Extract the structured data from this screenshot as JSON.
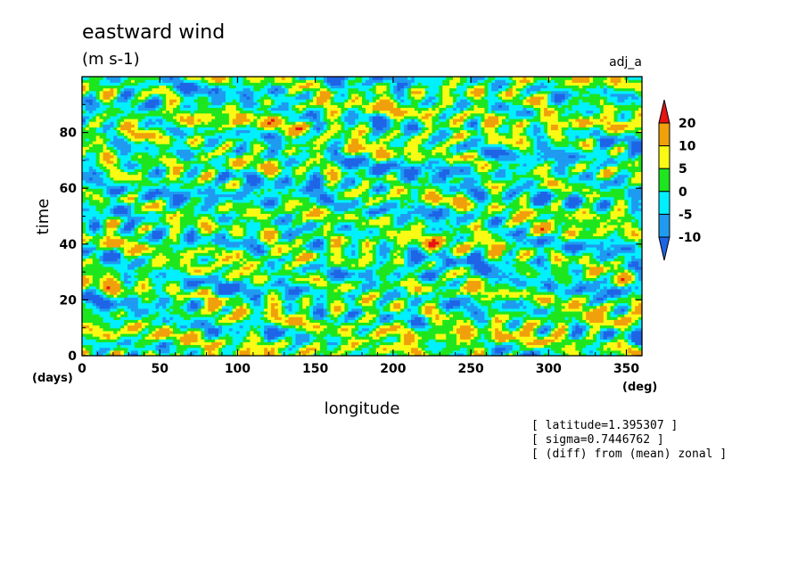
{
  "chart_data": {
    "type": "heatmap",
    "title": "eastward wind",
    "units": "(m s-1)",
    "tag": "adj_a",
    "xlabel": "longitude",
    "ylabel": "time",
    "x_unit": "(deg)",
    "y_unit": "(days)",
    "xlim": [
      0,
      360
    ],
    "ylim": [
      0,
      100
    ],
    "x_ticks": [
      0,
      50,
      100,
      150,
      200,
      250,
      300,
      350
    ],
    "y_ticks": [
      0,
      20,
      40,
      60,
      80
    ],
    "colorbar": {
      "levels": [
        -10,
        -5,
        0,
        5,
        10,
        20
      ],
      "level_labels": [
        "20",
        "10",
        "5",
        "0",
        "-5",
        "-10"
      ],
      "colors": [
        "#1e64e6",
        "#1e9bf0",
        "#00f0ff",
        "#1ee61e",
        "#fafa14",
        "#f0a00a",
        "#e61414"
      ],
      "extends": "both"
    },
    "dominant_values": "mostly between -10 and 10, banded westward-propagating anomalies"
  },
  "annotations": [
    "[ latitude=1.395307 ]",
    "[ sigma=0.7446762 ]",
    "[ (diff) from (mean) zonal ]"
  ]
}
